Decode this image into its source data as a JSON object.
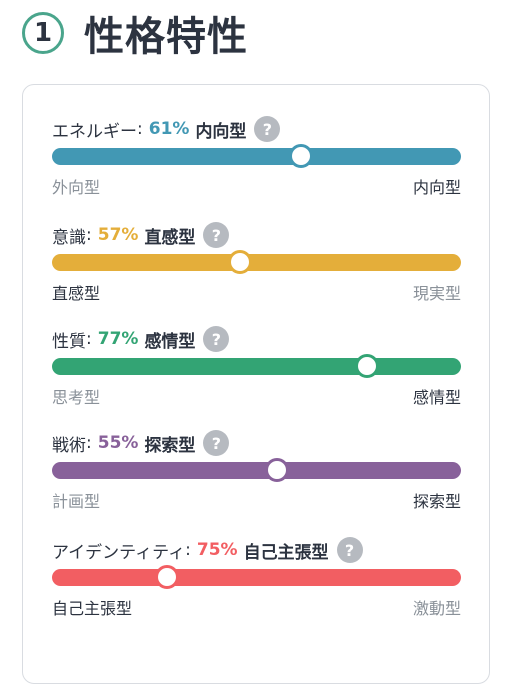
{
  "header": {
    "step_number": "1",
    "title": "性格特性"
  },
  "help_symbol": "?",
  "traits": [
    {
      "label": "エネルギー",
      "colon": ":",
      "percent": "61%",
      "percent_value": 61,
      "dominant": "内向型",
      "left_end": "外向型",
      "right_end": "内向型",
      "left_end_emphasized": false,
      "right_end_emphasized": true,
      "knob_position_pct": 61,
      "color": "#4298b4"
    },
    {
      "label": "意識",
      "colon": ":",
      "percent": "57%",
      "percent_value": 57,
      "dominant": "直感型",
      "left_end": "直感型",
      "right_end": "現実型",
      "left_end_emphasized": true,
      "right_end_emphasized": false,
      "knob_position_pct": 46,
      "color": "#e4ae3a"
    },
    {
      "label": "性質",
      "colon": ":",
      "percent": "77%",
      "percent_value": 77,
      "dominant": "感情型",
      "left_end": "思考型",
      "right_end": "感情型",
      "left_end_emphasized": false,
      "right_end_emphasized": true,
      "knob_position_pct": 77,
      "color": "#33a474"
    },
    {
      "label": "戦術",
      "colon": ":",
      "percent": "55%",
      "percent_value": 55,
      "dominant": "探索型",
      "left_end": "計画型",
      "right_end": "探索型",
      "left_end_emphasized": false,
      "right_end_emphasized": true,
      "knob_position_pct": 55,
      "color": "#88619a"
    },
    {
      "label": "アイデンティティ",
      "colon": ":",
      "percent": "75%",
      "percent_value": 75,
      "dominant": "自己主張型",
      "left_end": "自己主張型",
      "right_end": "激動型",
      "left_end_emphasized": true,
      "right_end_emphasized": false,
      "knob_position_pct": 28,
      "color": "#f25e62"
    }
  ],
  "colors": {
    "accent_ring": "#4aa58c",
    "text_dark": "#2c3340",
    "text_muted": "#8a9199",
    "help_bg": "#b6bac0"
  }
}
